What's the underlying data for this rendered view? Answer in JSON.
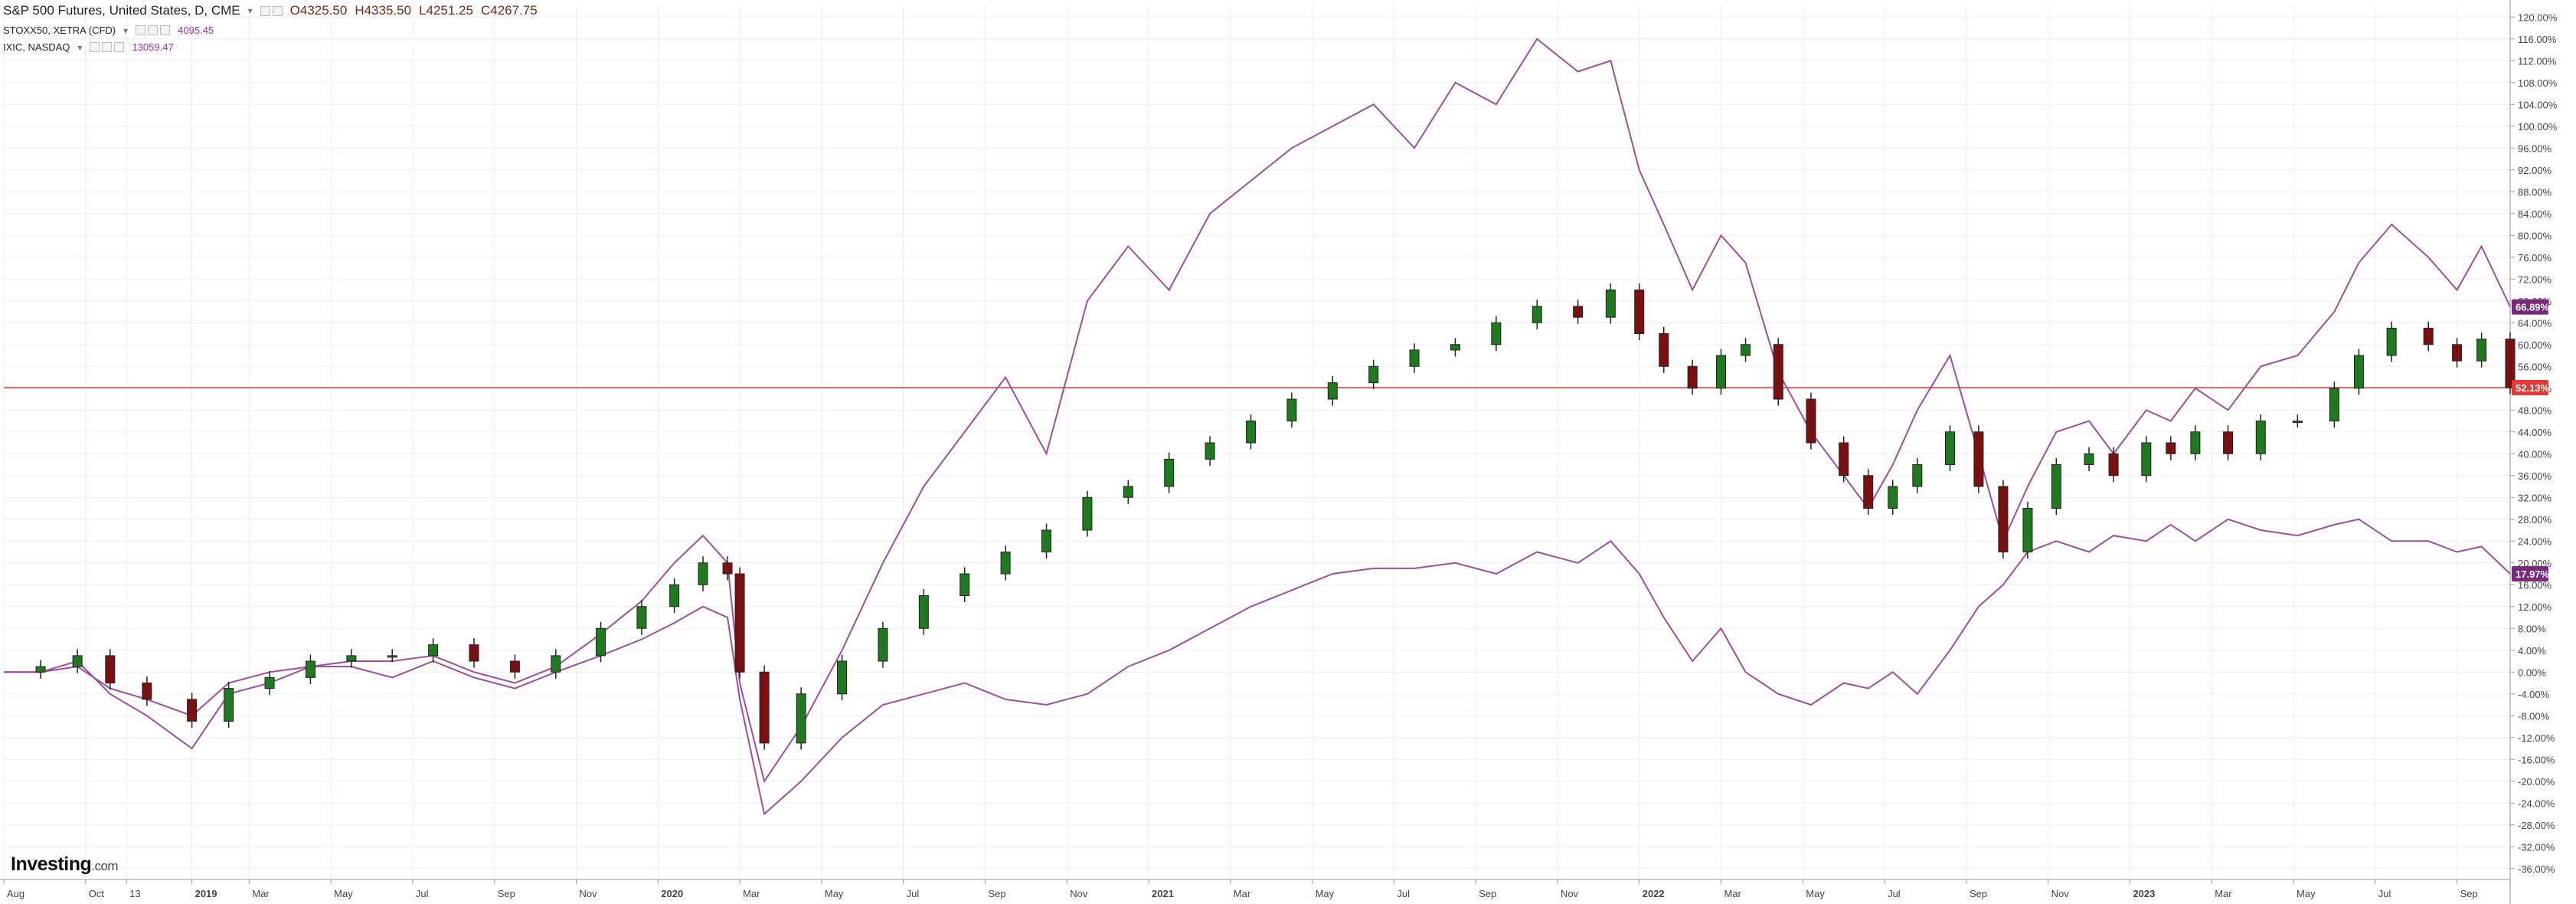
{
  "header": {
    "title": "S&P 500 Futures, United States, D, CME",
    "open": "O4325.50",
    "high": "H4335.50",
    "low": "L4251.25",
    "close": "C4267.75",
    "overlays": [
      {
        "label": "STOXX50, XETRA (CFD)",
        "value": "4095.45"
      },
      {
        "label": "IXIC, NASDAQ",
        "value": "13059.47"
      }
    ]
  },
  "branding": {
    "logo_main": "Investing",
    "logo_suffix": ".com"
  },
  "colors": {
    "up_candle": "#1f7a1f",
    "down_candle": "#7a1010",
    "overlay_line": "#9c4f9c",
    "price_line": "#e53935",
    "overlay_badge": "#7b2a7b",
    "grid": "#eeeeee"
  },
  "chart_data": {
    "type": "line",
    "title": "S&P 500 Futures, United States, D, CME",
    "y_unit": "percent change",
    "ylim": [
      -38,
      122
    ],
    "y_ticks": [
      120,
      116,
      112,
      108,
      104,
      100,
      96,
      92,
      88,
      84,
      80,
      76,
      72,
      68,
      64,
      60,
      56,
      52,
      48,
      44,
      40,
      36,
      32,
      28,
      24,
      20,
      16,
      12,
      8,
      4,
      0,
      -4,
      -8,
      -12,
      -16,
      -20,
      -24,
      -28,
      -32,
      -36
    ],
    "x_ticks": [
      "Aug",
      "Oct",
      "13",
      "2019",
      "Mar",
      "May",
      "Jul",
      "Sep",
      "Nov",
      "2020",
      "Mar",
      "May",
      "Jul",
      "Sep",
      "Nov",
      "2021",
      "Mar",
      "May",
      "Jul",
      "Sep",
      "Nov",
      "2022",
      "Mar",
      "May",
      "Jul",
      "Sep",
      "Nov",
      "2023",
      "Mar",
      "May",
      "Jul",
      "Sep"
    ],
    "x_tick_positions": [
      0.0,
      2.0,
      3.0,
      4.6,
      6.0,
      8.0,
      10.0,
      12.0,
      14.0,
      16.0,
      18.0,
      20.0,
      22.0,
      24.0,
      26.0,
      28.0,
      30.0,
      32.0,
      34.0,
      36.0,
      38.0,
      40.0,
      42.0,
      44.0,
      46.0,
      48.0,
      50.0,
      52.0,
      54.0,
      56.0,
      58.0,
      60.0
    ],
    "x_range": [
      0,
      61.3
    ],
    "grid": true,
    "series": [
      {
        "name": "S&P 500 Futures",
        "style": "candlestick",
        "last_label": "52.13%",
        "x": [
          0,
          0.9,
          1.8,
          2.6,
          3.5,
          4.6,
          5.5,
          6.5,
          7.5,
          8.5,
          9.5,
          10.5,
          11.5,
          12.5,
          13.5,
          14.6,
          15.6,
          16.4,
          17.1,
          17.7,
          18.0,
          18.6,
          19.5,
          20.5,
          21.5,
          22.5,
          23.5,
          24.5,
          25.5,
          26.5,
          27.5,
          28.5,
          29.5,
          30.5,
          31.5,
          32.5,
          33.5,
          34.5,
          35.5,
          36.5,
          37.5,
          38.5,
          39.3,
          40.0,
          40.6,
          41.3,
          42.0,
          42.6,
          43.4,
          44.2,
          45.0,
          45.6,
          46.2,
          46.8,
          47.6,
          48.3,
          48.9,
          49.5,
          50.2,
          51.0,
          51.6,
          52.4,
          53.0,
          53.6,
          54.4,
          55.2,
          56.1,
          57.0,
          57.6,
          58.4,
          59.3,
          60.0,
          60.6,
          61.3
        ],
        "y": [
          0,
          1,
          3,
          -2,
          -5,
          -9,
          -3,
          -1,
          2,
          3,
          3,
          5,
          2,
          0,
          3,
          8,
          12,
          16,
          20,
          18,
          0,
          -13,
          -4,
          2,
          8,
          14,
          18,
          22,
          26,
          32,
          34,
          39,
          42,
          46,
          50,
          53,
          56,
          59,
          60,
          64,
          67,
          65,
          70,
          62,
          56,
          52,
          58,
          60,
          50,
          42,
          36,
          30,
          34,
          38,
          44,
          34,
          22,
          30,
          38,
          40,
          36,
          42,
          40,
          44,
          40,
          46,
          46,
          52,
          58,
          63,
          60,
          57,
          61,
          52.1
        ]
      },
      {
        "name": "IXIC, NASDAQ",
        "style": "line",
        "last_label": "66.89%",
        "x": [
          0,
          0.9,
          1.8,
          2.6,
          3.5,
          4.6,
          5.5,
          6.5,
          7.5,
          8.5,
          9.5,
          10.5,
          11.5,
          12.5,
          13.5,
          14.6,
          15.6,
          16.4,
          17.1,
          17.7,
          18.0,
          18.6,
          19.5,
          20.5,
          21.5,
          22.5,
          23.5,
          24.5,
          25.5,
          26.5,
          27.5,
          28.5,
          29.5,
          30.5,
          31.5,
          32.5,
          33.5,
          34.5,
          35.5,
          36.5,
          37.5,
          38.5,
          39.3,
          40.0,
          40.6,
          41.3,
          42.0,
          42.6,
          43.4,
          44.2,
          45.0,
          45.6,
          46.2,
          46.8,
          47.6,
          48.3,
          48.9,
          49.5,
          50.2,
          51.0,
          51.6,
          52.4,
          53.0,
          53.6,
          54.4,
          55.2,
          56.1,
          57.0,
          57.6,
          58.4,
          59.3,
          60.0,
          60.6,
          61.3
        ],
        "y": [
          0,
          0,
          2,
          -4,
          -8,
          -14,
          -4,
          -2,
          1,
          2,
          2,
          3,
          0,
          -2,
          1,
          7,
          13,
          20,
          25,
          20,
          -2,
          -20,
          -10,
          4,
          20,
          34,
          44,
          54,
          40,
          68,
          78,
          70,
          84,
          90,
          96,
          100,
          104,
          96,
          108,
          104,
          116,
          110,
          112,
          92,
          82,
          70,
          80,
          75,
          55,
          44,
          36,
          30,
          38,
          48,
          58,
          40,
          24,
          34,
          44,
          46,
          40,
          48,
          46,
          52,
          48,
          56,
          58,
          66,
          75,
          82,
          76,
          70,
          78,
          66.9
        ]
      },
      {
        "name": "STOXX50, XETRA (CFD)",
        "style": "line",
        "last_label": "17.97%",
        "x": [
          0,
          0.9,
          1.8,
          2.6,
          3.5,
          4.6,
          5.5,
          6.5,
          7.5,
          8.5,
          9.5,
          10.5,
          11.5,
          12.5,
          13.5,
          14.6,
          15.6,
          16.4,
          17.1,
          17.7,
          18.0,
          18.6,
          19.5,
          20.5,
          21.5,
          22.5,
          23.5,
          24.5,
          25.5,
          26.5,
          27.5,
          28.5,
          29.5,
          30.5,
          31.5,
          32.5,
          33.5,
          34.5,
          35.5,
          36.5,
          37.5,
          38.5,
          39.3,
          40.0,
          40.6,
          41.3,
          42.0,
          42.6,
          43.4,
          44.2,
          45.0,
          45.6,
          46.2,
          46.8,
          47.6,
          48.3,
          48.9,
          49.5,
          50.2,
          51.0,
          51.6,
          52.4,
          53.0,
          53.6,
          54.4,
          55.2,
          56.1,
          57.0,
          57.6,
          58.4,
          59.3,
          60.0,
          60.6,
          61.3
        ],
        "y": [
          0,
          0,
          1,
          -3,
          -5,
          -8,
          -2,
          0,
          1,
          1,
          -1,
          2,
          -1,
          -3,
          0,
          3,
          6,
          9,
          12,
          10,
          -5,
          -26,
          -20,
          -12,
          -6,
          -4,
          -2,
          -5,
          -6,
          -4,
          1,
          4,
          8,
          12,
          15,
          18,
          19,
          19,
          20,
          18,
          22,
          20,
          24,
          18,
          10,
          2,
          8,
          0,
          -4,
          -6,
          -2,
          -3,
          0,
          -4,
          4,
          12,
          16,
          22,
          24,
          22,
          25,
          24,
          27,
          24,
          28,
          26,
          25,
          27,
          28,
          24,
          24,
          22,
          23,
          18.0
        ]
      }
    ]
  }
}
